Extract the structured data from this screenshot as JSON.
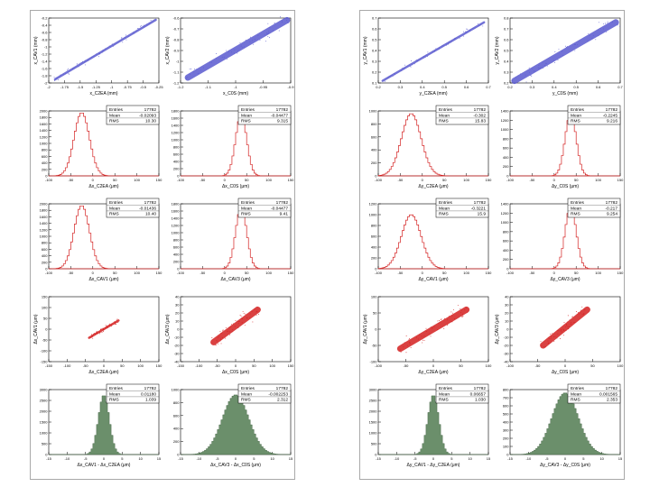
{
  "colors": {
    "blue": "#5a5acf",
    "red": "#d42020",
    "green": "#6b8f6b",
    "frame": "#a8a8a8"
  },
  "canvases": [
    {
      "name": "x-canvas",
      "panels": [
        {
          "type": "scatter",
          "color": "blue",
          "width": "thin",
          "xlabel": "x_C2EA (mm)",
          "ylabel": "x_CAV1 (mm)",
          "xticks": [
            "-2",
            "-1.75",
            "-1.5",
            "-1.25",
            "-1",
            "-0.75",
            "-0.5",
            "-0.25"
          ],
          "yticks": [
            "-2",
            "-1.8",
            "-1.6",
            "-1.4",
            "-1.2",
            "-1",
            "-0.8",
            "-0.6",
            "-0.4",
            "-0.2"
          ],
          "xrange": [
            -2,
            -0.25
          ],
          "yrange": [
            -2,
            -0.2
          ],
          "line": {
            "x0": -1.9,
            "y0": -1.9,
            "x1": -0.3,
            "y1": -0.25
          }
        },
        {
          "type": "scatter",
          "color": "blue",
          "width": "wide",
          "xlabel": "x_C0S (mm)",
          "ylabel": "x_CAV2 (mm)",
          "xticks": [
            "-1.2",
            "-1.1",
            "-1",
            "-0.95",
            "-0.9"
          ],
          "yticks": [
            "-1.2",
            "-1.1",
            "-1",
            "-0.9",
            "-0.8",
            "-0.7",
            "-0.6"
          ],
          "xrange": [
            -1.2,
            -0.9
          ],
          "yrange": [
            -1.2,
            -0.6
          ],
          "line": {
            "x0": -1.18,
            "y0": -1.15,
            "x1": -0.91,
            "y1": -0.62
          }
        },
        {
          "type": "hist",
          "color": "red",
          "xlabel": "Δx_C2EA (μm)",
          "stats": {
            "Entries": "17782",
            "Mean": "-0.02093",
            "RMS": "10.30"
          },
          "yticks": [
            "0",
            "200",
            "400",
            "600",
            "800",
            "1000",
            "1200",
            "1400",
            "1600",
            "1800",
            "2000"
          ],
          "xticks": [
            "-100",
            "-50",
            "0",
            "50",
            "100",
            "150"
          ],
          "ymax": 2000,
          "peak": 1950,
          "mu": 0.3,
          "sigma": 0.07
        },
        {
          "type": "hist",
          "color": "red",
          "xlabel": "Δx_C0S (μm)",
          "stats": {
            "Entries": "17782",
            "Mean": "-0.04477",
            "RMS": "9.315"
          },
          "yticks": [
            "0",
            "200",
            "400",
            "600",
            "800",
            "1000",
            "1200",
            "1400",
            "1600",
            "1800"
          ],
          "xticks": [
            "-100",
            "-50",
            "0",
            "50",
            "100",
            "150"
          ],
          "ymax": 1800,
          "peak": 1700,
          "mu": 0.55,
          "sigma": 0.05
        },
        {
          "type": "hist",
          "color": "red",
          "xlabel": "Δx_CAV1 (μm)",
          "stats": {
            "Entries": "17782",
            "Mean": "-0.01436",
            "RMS": "10.40"
          },
          "yticks": [
            "0",
            "200",
            "400",
            "600",
            "800",
            "1000",
            "1200",
            "1400",
            "1600",
            "1800",
            "2000"
          ],
          "xticks": [
            "-100",
            "-50",
            "0",
            "50",
            "100",
            "150"
          ],
          "ymax": 2000,
          "peak": 1950,
          "mu": 0.3,
          "sigma": 0.07
        },
        {
          "type": "hist",
          "color": "red",
          "xlabel": "Δx_CAV3 (μm)",
          "stats": {
            "Entries": "17782",
            "Mean": "-0.04477",
            "RMS": "9.41"
          },
          "yticks": [
            "0",
            "200",
            "400",
            "600",
            "800",
            "1000",
            "1200",
            "1400",
            "1600",
            "1800"
          ],
          "xticks": [
            "-100",
            "-50",
            "0",
            "50",
            "100",
            "150"
          ],
          "ymax": 1800,
          "peak": 1700,
          "mu": 0.55,
          "sigma": 0.05
        },
        {
          "type": "scatter",
          "color": "red",
          "width": "thin",
          "xlabel": "Δx_C2EA (μm)",
          "ylabel": "Δx_CAV1 (μm)",
          "xticks": [
            "-150",
            "-100",
            "-50",
            "0",
            "50",
            "100",
            "150"
          ],
          "yticks": [
            "-150",
            "-100",
            "-50",
            "0",
            "50",
            "100",
            "150"
          ],
          "xrange": [
            -150,
            150
          ],
          "yrange": [
            -150,
            150
          ],
          "line": {
            "x0": -40,
            "y0": -40,
            "x1": 40,
            "y1": 40
          }
        },
        {
          "type": "scatter",
          "color": "red",
          "width": "wide",
          "xlabel": "Δx_C0S (μm)",
          "ylabel": "Δx_CAV3 (μm)",
          "xticks": [
            "-150",
            "-100",
            "-50",
            "0",
            "50",
            "100",
            "150"
          ],
          "yticks": [
            "-40",
            "-30",
            "-20",
            "-10",
            "0",
            "10",
            "20",
            "30",
            "40"
          ],
          "xrange": [
            -150,
            150
          ],
          "yrange": [
            -50,
            50
          ],
          "line": {
            "x0": -60,
            "y0": -20,
            "x1": 60,
            "y1": 30
          }
        },
        {
          "type": "hist",
          "color": "green",
          "xlabel": "Δx_CAV1 - Δx_C2EA (μm)",
          "stats": {
            "Entries": "17782",
            "Mean": "0.01180",
            "RMS": "1.039"
          },
          "yticks": [
            "0",
            "500",
            "1000",
            "1500",
            "2000",
            "2500",
            "3000"
          ],
          "xticks": [
            "-15",
            "-10",
            "-5",
            "0",
            "5",
            "10",
            "15"
          ],
          "ymax": 3000,
          "peak": 2750,
          "mu": 0.5,
          "sigma": 0.05
        },
        {
          "type": "hist",
          "color": "green",
          "xlabel": "Δx_CAV3 - Δx_C0S (μm)",
          "stats": {
            "Entries": "17782",
            "Mean": "-0.002253",
            "RMS": "2.312"
          },
          "yticks": [
            "0",
            "200",
            "400",
            "600",
            "800",
            "1000"
          ],
          "xticks": [
            "-15",
            "-10",
            "-5",
            "0",
            "5",
            "10",
            "15"
          ],
          "ymax": 1000,
          "peak": 920,
          "mu": 0.5,
          "sigma": 0.12
        }
      ]
    },
    {
      "name": "y-canvas",
      "panels": [
        {
          "type": "scatter",
          "color": "blue",
          "width": "thin",
          "xlabel": "y_C2EA (mm)",
          "ylabel": "y_CAV1 (mm)",
          "xticks": [
            "0.2",
            "0.3",
            "0.4",
            "0.5",
            "0.6",
            "0.7"
          ],
          "yticks": [
            "0.1",
            "0.2",
            "0.3",
            "0.4",
            "0.5",
            "0.6",
            "0.7"
          ],
          "xrange": [
            0.2,
            0.7
          ],
          "yrange": [
            0.1,
            0.7
          ],
          "line": {
            "x0": 0.22,
            "y0": 0.12,
            "x1": 0.68,
            "y1": 0.66
          }
        },
        {
          "type": "scatter",
          "color": "blue",
          "width": "wide",
          "xlabel": "y_C0S (mm)",
          "ylabel": "y_CAV2 (mm)",
          "xticks": [
            "0.2",
            "0.3",
            "0.4",
            "0.5",
            "0.6",
            "0.7"
          ],
          "yticks": [
            "0.2",
            "0.3",
            "0.4",
            "0.5",
            "0.6",
            "0.7",
            "0.8"
          ],
          "xrange": [
            0.2,
            0.7
          ],
          "yrange": [
            0.2,
            0.8
          ],
          "line": {
            "x0": 0.22,
            "y0": 0.22,
            "x1": 0.68,
            "y1": 0.76
          }
        },
        {
          "type": "hist",
          "color": "red",
          "xlabel": "Δy_C2EA (μm)",
          "stats": {
            "Entries": "17782",
            "Mean": "-0.302",
            "RMS": "15.83"
          },
          "yticks": [
            "0",
            "200",
            "400",
            "600",
            "800",
            "1000"
          ],
          "xticks": [
            "-100",
            "-50",
            "0",
            "50",
            "100",
            "150"
          ],
          "ymax": 1000,
          "peak": 960,
          "mu": 0.3,
          "sigma": 0.09
        },
        {
          "type": "hist",
          "color": "red",
          "xlabel": "Δy_C0S (μm)",
          "stats": {
            "Entries": "17782",
            "Mean": "-0.2245",
            "RMS": "9.216"
          },
          "yticks": [
            "0",
            "200",
            "400",
            "600",
            "800",
            "1000",
            "1200",
            "1400"
          ],
          "xticks": [
            "-100",
            "-50",
            "0",
            "50",
            "100",
            "150"
          ],
          "ymax": 1400,
          "peak": 1350,
          "mu": 0.55,
          "sigma": 0.05
        },
        {
          "type": "hist",
          "color": "red",
          "xlabel": "Δy_CAV1 (μm)",
          "stats": {
            "Entries": "17782",
            "Mean": "-0.3221",
            "RMS": "15.9"
          },
          "yticks": [
            "0",
            "200",
            "400",
            "600",
            "800",
            "1000",
            "1200"
          ],
          "xticks": [
            "-100",
            "-50",
            "0",
            "50",
            "100",
            "150"
          ],
          "ymax": 1200,
          "peak": 1000,
          "mu": 0.3,
          "sigma": 0.09
        },
        {
          "type": "hist",
          "color": "red",
          "xlabel": "Δy_CAV3 (μm)",
          "stats": {
            "Entries": "17782",
            "Mean": "-0.217",
            "RMS": "9.254"
          },
          "yticks": [
            "0",
            "200",
            "400",
            "600",
            "800",
            "1000",
            "1200",
            "1400"
          ],
          "xticks": [
            "-100",
            "-50",
            "0",
            "50",
            "100",
            "150"
          ],
          "ymax": 1400,
          "peak": 1350,
          "mu": 0.55,
          "sigma": 0.05
        },
        {
          "type": "scatter",
          "color": "red",
          "width": "wide",
          "xlabel": "Δy_C2EA (μm)",
          "ylabel": "Δy_CAV1 (μm)",
          "xticks": [
            "-100",
            "-50",
            "0",
            "50",
            "100"
          ],
          "yticks": [
            "-100",
            "-50",
            "0",
            "50",
            "100"
          ],
          "xrange": [
            -100,
            100
          ],
          "yrange": [
            -100,
            100
          ],
          "line": {
            "x0": -60,
            "y0": -60,
            "x1": 60,
            "y1": 60
          }
        },
        {
          "type": "scatter",
          "color": "red",
          "width": "wide",
          "xlabel": "Δy_C0S (μm)",
          "ylabel": "Δy_CAV3 (μm)",
          "xticks": [
            "-100",
            "-50",
            "0",
            "50",
            "100"
          ],
          "yticks": [
            "-40",
            "-30",
            "-20",
            "-10",
            "0",
            "10",
            "20",
            "30",
            "40"
          ],
          "xrange": [
            -100,
            100
          ],
          "yrange": [
            -50,
            50
          ],
          "line": {
            "x0": -40,
            "y0": -25,
            "x1": 40,
            "y1": 30
          }
        },
        {
          "type": "hist",
          "color": "green",
          "xlabel": "Δy_CAV1 - Δy_C2EA (μm)",
          "stats": {
            "Entries": "17782",
            "Mean": "0.06657",
            "RMS": "1.030"
          },
          "yticks": [
            "0",
            "500",
            "1000",
            "1500",
            "2000",
            "2500",
            "3000"
          ],
          "xticks": [
            "-15",
            "-10",
            "-5",
            "0",
            "5",
            "10",
            "15"
          ],
          "ymax": 3000,
          "peak": 2750,
          "mu": 0.5,
          "sigma": 0.05
        },
        {
          "type": "hist",
          "color": "green",
          "xlabel": "Δy_CAV3 - Δy_C0S (μm)",
          "stats": {
            "Entries": "17782",
            "Mean": "0.001565",
            "RMS": "2.353"
          },
          "yticks": [
            "0",
            "100",
            "200",
            "300",
            "400",
            "500",
            "600",
            "700",
            "800"
          ],
          "xticks": [
            "-15",
            "-10",
            "-5",
            "0",
            "5",
            "10",
            "15"
          ],
          "ymax": 800,
          "peak": 760,
          "mu": 0.5,
          "sigma": 0.12
        }
      ]
    }
  ],
  "chart_data": [
    {
      "type": "scatter",
      "title": "",
      "xlabel": "x_C2EA (mm)",
      "ylabel": "x_CAV1 (mm)",
      "xlim": [
        -2,
        -0.25
      ],
      "ylim": [
        -2,
        -0.2
      ],
      "x": [
        -1.9,
        -1.5,
        -1.0,
        -0.5,
        -0.3
      ],
      "y": [
        -1.9,
        -1.5,
        -1.0,
        -0.5,
        -0.25
      ]
    },
    {
      "type": "scatter",
      "title": "",
      "xlabel": "x_C0S (mm)",
      "ylabel": "x_CAV2 (mm)",
      "xlim": [
        -1.2,
        -0.9
      ],
      "ylim": [
        -1.2,
        -0.6
      ],
      "x": [
        -1.18,
        -1.1,
        -1.0,
        -0.91
      ],
      "y": [
        -1.15,
        -0.99,
        -0.8,
        -0.62
      ]
    },
    {
      "type": "bar",
      "title": "",
      "xlabel": "Δx_C2EA (μm)",
      "ylabel": "",
      "ylim": [
        0,
        2000
      ],
      "legend": {
        "Entries": "17782",
        "Mean": "-0.02093",
        "RMS": "10.30"
      }
    },
    {
      "type": "bar",
      "title": "",
      "xlabel": "Δx_C0S (μm)",
      "ylabel": "",
      "ylim": [
        0,
        1800
      ],
      "legend": {
        "Entries": "17782",
        "Mean": "-0.04477",
        "RMS": "9.315"
      }
    },
    {
      "type": "bar",
      "title": "",
      "xlabel": "Δx_CAV1 (μm)",
      "ylabel": "",
      "ylim": [
        0,
        2000
      ],
      "legend": {
        "Entries": "17782",
        "Mean": "-0.01436",
        "RMS": "10.40"
      }
    },
    {
      "type": "bar",
      "title": "",
      "xlabel": "Δx_CAV3 (μm)",
      "ylabel": "",
      "ylim": [
        0,
        1800
      ],
      "legend": {
        "Entries": "17782",
        "Mean": "-0.04477",
        "RMS": "9.41"
      }
    },
    {
      "type": "scatter",
      "title": "",
      "xlabel": "Δx_C2EA (μm)",
      "ylabel": "Δx_CAV1 (μm)",
      "xlim": [
        -150,
        150
      ],
      "ylim": [
        -150,
        150
      ]
    },
    {
      "type": "scatter",
      "title": "",
      "xlabel": "Δx_C0S (μm)",
      "ylabel": "Δx_CAV3 (μm)",
      "xlim": [
        -150,
        150
      ],
      "ylim": [
        -50,
        50
      ]
    },
    {
      "type": "bar",
      "title": "",
      "xlabel": "Δx_CAV1 - Δx_C2EA (μm)",
      "ylabel": "",
      "ylim": [
        0,
        3000
      ],
      "legend": {
        "Entries": "17782",
        "Mean": "0.01180",
        "RMS": "1.039"
      }
    },
    {
      "type": "bar",
      "title": "",
      "xlabel": "Δx_CAV3 - Δx_C0S (μm)",
      "ylabel": "",
      "ylim": [
        0,
        1000
      ],
      "legend": {
        "Entries": "17782",
        "Mean": "-0.002253",
        "RMS": "2.312"
      }
    },
    {
      "type": "scatter",
      "title": "",
      "xlabel": "y_C2EA (mm)",
      "ylabel": "y_CAV1 (mm)",
      "xlim": [
        0.2,
        0.7
      ],
      "ylim": [
        0.1,
        0.7
      ]
    },
    {
      "type": "scatter",
      "title": "",
      "xlabel": "y_C0S (mm)",
      "ylabel": "y_CAV2 (mm)",
      "xlim": [
        0.2,
        0.7
      ],
      "ylim": [
        0.2,
        0.8
      ]
    },
    {
      "type": "bar",
      "title": "",
      "xlabel": "Δy_C2EA (μm)",
      "ylabel": "",
      "ylim": [
        0,
        1000
      ],
      "legend": {
        "Entries": "17782",
        "Mean": "-0.302",
        "RMS": "15.83"
      }
    },
    {
      "type": "bar",
      "title": "",
      "xlabel": "Δy_C0S (μm)",
      "ylabel": "",
      "ylim": [
        0,
        1400
      ],
      "legend": {
        "Entries": "17782",
        "Mean": "-0.2245",
        "RMS": "9.216"
      }
    },
    {
      "type": "bar",
      "title": "",
      "xlabel": "Δy_CAV1 (μm)",
      "ylabel": "",
      "ylim": [
        0,
        1200
      ],
      "legend": {
        "Entries": "17782",
        "Mean": "-0.3221",
        "RMS": "15.9"
      }
    },
    {
      "type": "bar",
      "title": "",
      "xlabel": "Δy_CAV3 (μm)",
      "ylabel": "",
      "ylim": [
        0,
        1400
      ],
      "legend": {
        "Entries": "17782",
        "Mean": "-0.217",
        "RMS": "9.254"
      }
    },
    {
      "type": "scatter",
      "title": "",
      "xlabel": "Δy_C2EA (μm)",
      "ylabel": "Δy_CAV1 (μm)",
      "xlim": [
        -100,
        100
      ],
      "ylim": [
        -100,
        100
      ]
    },
    {
      "type": "scatter",
      "title": "",
      "xlabel": "Δy_C0S (μm)",
      "ylabel": "Δy_CAV3 (μm)",
      "xlim": [
        -100,
        100
      ],
      "ylim": [
        -50,
        50
      ]
    },
    {
      "type": "bar",
      "title": "",
      "xlabel": "Δy_CAV1 - Δy_C2EA (μm)",
      "ylabel": "",
      "ylim": [
        0,
        3000
      ],
      "legend": {
        "Entries": "17782",
        "Mean": "0.06657",
        "RMS": "1.030"
      }
    },
    {
      "type": "bar",
      "title": "",
      "xlabel": "Δy_CAV3 - Δy_C0S (μm)",
      "ylabel": "",
      "ylim": [
        0,
        800
      ],
      "legend": {
        "Entries": "17782",
        "Mean": "0.001565",
        "RMS": "2.353"
      }
    }
  ]
}
